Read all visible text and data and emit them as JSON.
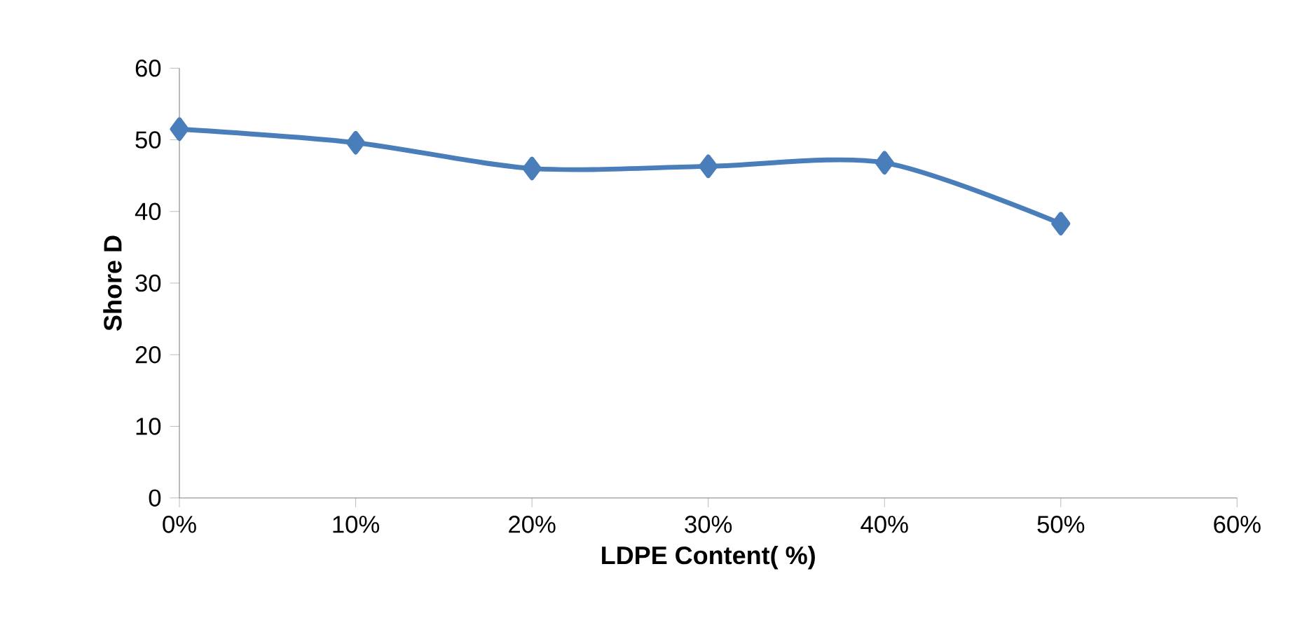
{
  "chart_data": {
    "type": "line",
    "xlabel": "LDPE Content( %)",
    "ylabel": "Shore D",
    "x": [
      0,
      10,
      20,
      30,
      40,
      50
    ],
    "series": [
      {
        "color": "#4a7ebb",
        "values": [
          51.5,
          49.6,
          46.0,
          46.3,
          46.8,
          38.3
        ]
      }
    ],
    "xlim": [
      0,
      60
    ],
    "xticks": [
      {
        "value": 0,
        "label": "0%"
      },
      {
        "value": 10,
        "label": "10%"
      },
      {
        "value": 20,
        "label": "20%"
      },
      {
        "value": 30,
        "label": "30%"
      },
      {
        "value": 40,
        "label": "40%"
      },
      {
        "value": 50,
        "label": "50%"
      },
      {
        "value": 60,
        "label": "60%"
      }
    ],
    "ylim": [
      0,
      60
    ],
    "yticks": [
      0,
      10,
      20,
      30,
      40,
      50,
      60
    ],
    "marker": "diamond",
    "line_style": "solid",
    "grid": false,
    "legend": false
  }
}
